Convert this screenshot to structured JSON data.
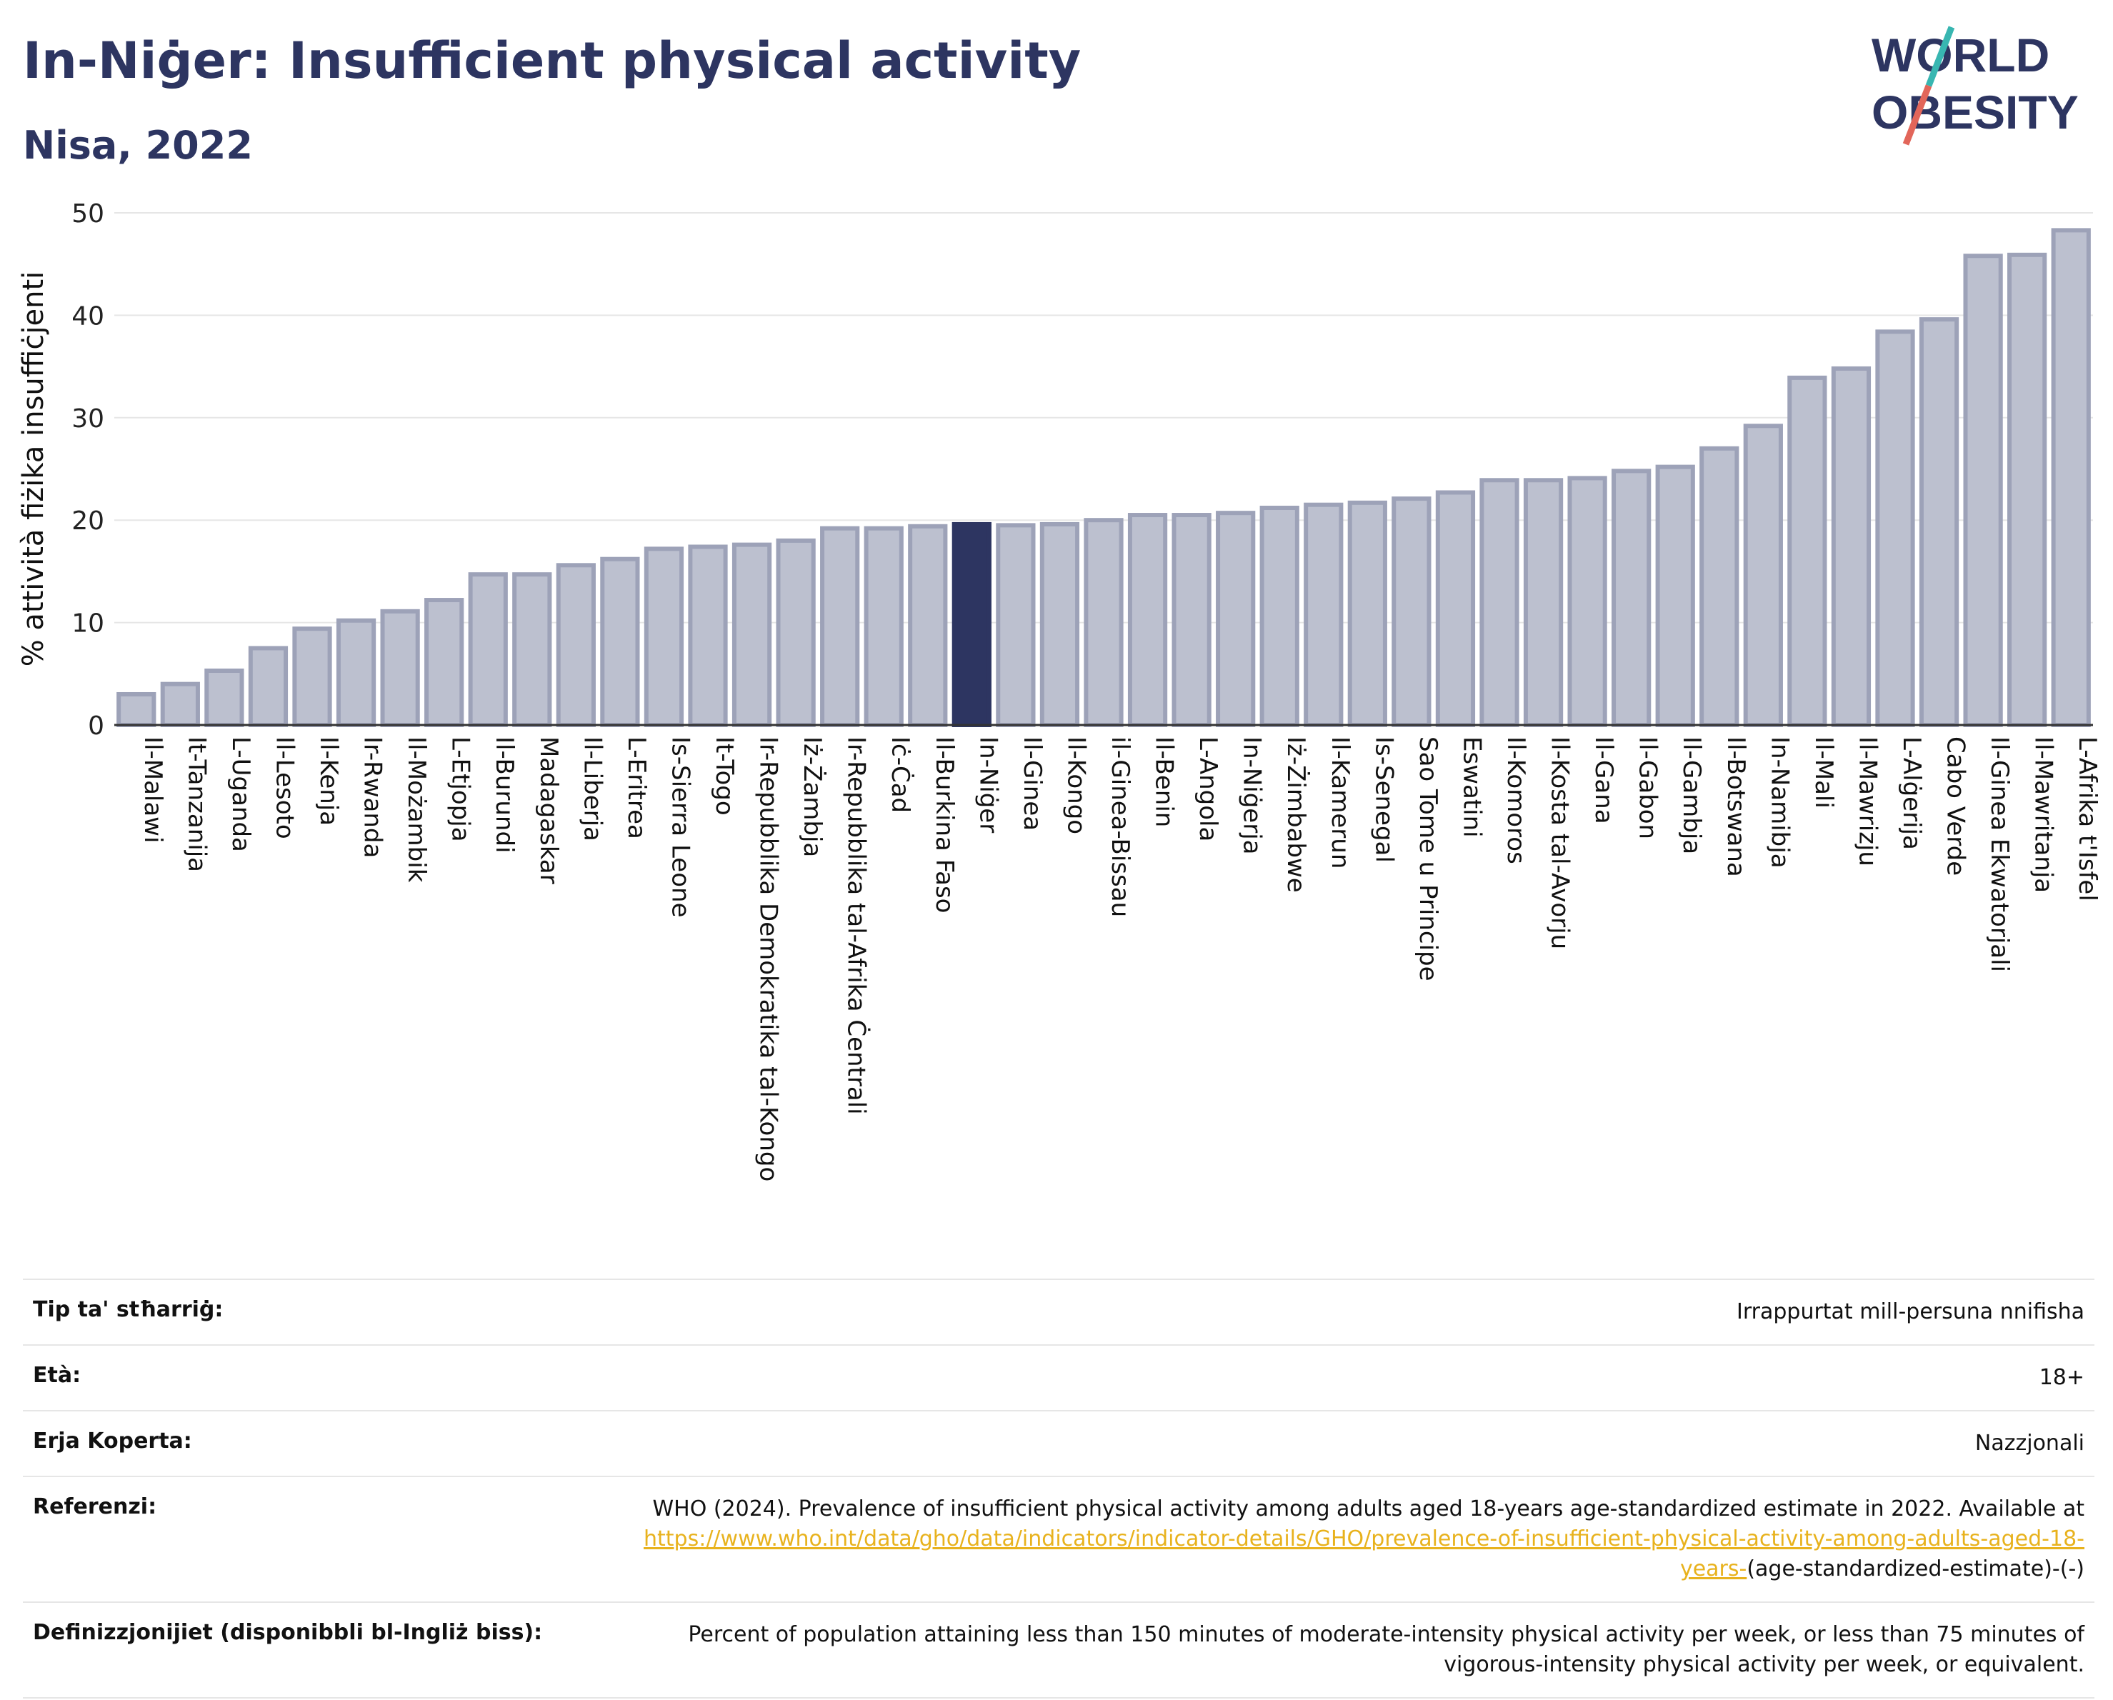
{
  "header": {
    "title": "In-Niġer: Insufficient physical activity",
    "subtitle": "Nisa, 2022"
  },
  "logo": {
    "line1": "WORLD",
    "line2": "OBESITY",
    "accent_teal": "#38b6b1",
    "accent_red": "#e2665a",
    "navy": "#2d3561"
  },
  "colors": {
    "bar_fill": "#bcc0cf",
    "bar_stroke": "#9da2b8",
    "highlight": "#2d3561",
    "grid": "#e6e6e6"
  },
  "chart_data": {
    "type": "bar",
    "ylabel": "% attività fiżika insuffiċjenti",
    "ylim": [
      0,
      50
    ],
    "yticks": [
      0,
      10,
      20,
      30,
      40,
      50
    ],
    "highlight": "In-Niġer",
    "categories": [
      "Il-Malawi",
      "It-Tanzanija",
      "L-Uganda",
      "Il-Lesoto",
      "Il-Kenja",
      "Ir-Rwanda",
      "Il-Możambik",
      "L-Etjopja",
      "Il-Burundi",
      "Madagaskar",
      "Il-Liberja",
      "L-Eritrea",
      "Is-Sierra Leone",
      "It-Togo",
      "Ir-Repubblika Demokratika tal-Kongo",
      "Iż-Żambja",
      "Ir-Repubblika tal-Afrika Ċentrali",
      "Iċ-Ċad",
      "Il-Burkina Faso",
      "In-Niġer",
      "Il-Ginea",
      "Il-Kongo",
      "il-Ginea-Bissau",
      "Il-Benin",
      "L-Angola",
      "In-Niġerja",
      "Iż-Żimbabwe",
      "Il-Kamerun",
      "Is-Senegal",
      "Sao Tome u Principe",
      "Eswatini",
      "Il-Komoros",
      "Il-Kosta tal-Avorju",
      "Il-Gana",
      "Il-Gabon",
      "Il-Gambja",
      "Il-Botswana",
      "In-Namibja",
      "Il-Mali",
      "Il-Mawrizju",
      "L-Alġerija",
      "Cabo Verde",
      "Il-Ginea Ekwatorjali",
      "Il-Mawritanja",
      "L-Afrika t'Isfel"
    ],
    "values": [
      3.0,
      4.0,
      5.3,
      7.5,
      9.4,
      10.2,
      11.1,
      12.2,
      14.7,
      14.7,
      15.6,
      16.2,
      17.2,
      17.4,
      17.6,
      18.0,
      19.2,
      19.2,
      19.4,
      19.6,
      19.5,
      19.6,
      20.0,
      20.5,
      20.5,
      20.7,
      21.2,
      21.5,
      21.7,
      22.1,
      22.7,
      23.9,
      23.9,
      24.1,
      24.8,
      25.2,
      27.0,
      29.2,
      33.9,
      34.8,
      38.4,
      39.6,
      45.8,
      45.9,
      48.3
    ]
  },
  "meta": {
    "rows": [
      {
        "key": "Tip ta' stħarriġ:",
        "value": "Irrappurtat mill-persuna nnifisha"
      },
      {
        "key": "Età:",
        "value": "18+"
      },
      {
        "key": "Erja Koperta:",
        "value": "Nazzjonali"
      }
    ],
    "reference_key": "Referenzi:",
    "reference_text": "WHO (2024). Prevalence of insufficient physical activity among adults aged 18-years age-standardized estimate in 2022. Available at",
    "reference_link": "https://www.who.int/data/gho/data/indicators/indicator-details/GHO/prevalence-of-insufficient-physical-activity-among-adults-aged-18-years-",
    "reference_tail": "(age-standardized-estimate)-(-)",
    "definition_key": "Definizzjonijiet (disponibbli bl-Ingliż biss):",
    "definition_text": "Percent of population attaining less than 150 minutes of moderate-intensity physical activity per week, or less than 75 minutes of vigorous-intensity physical activity per week, or equivalent."
  }
}
